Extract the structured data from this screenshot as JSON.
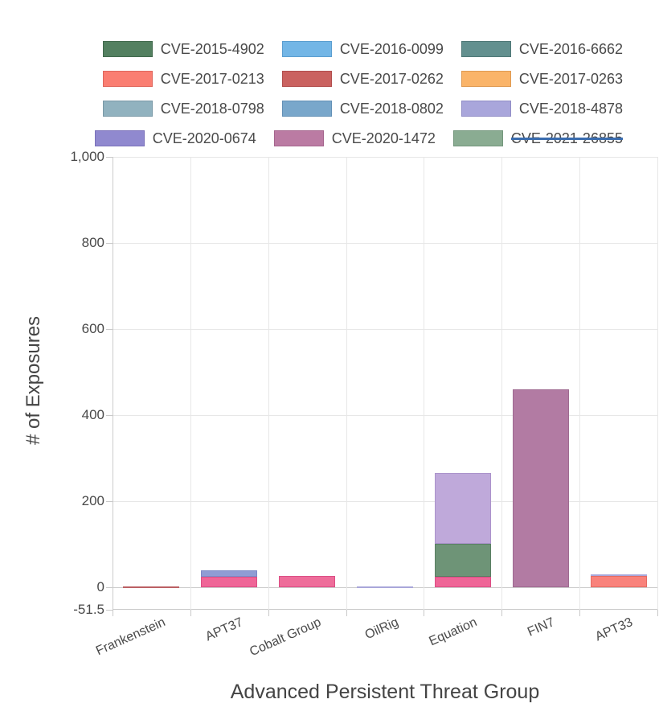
{
  "legend": {
    "strike_color": "#3a6cae",
    "rows": [
      {
        "items": [
          {
            "label": "CVE-2015-4902",
            "color": "#538060",
            "border": "#426a4e",
            "disabled": false
          },
          {
            "label": "CVE-2016-0099",
            "color": "#73b6e6",
            "border": "#5b9ed0",
            "disabled": false
          },
          {
            "label": "CVE-2016-6662",
            "color": "#63908f",
            "border": "#4f7877",
            "disabled": false
          }
        ]
      },
      {
        "items": [
          {
            "label": "CVE-2017-0213",
            "color": "#fa7e72",
            "border": "#df675d",
            "disabled": false
          },
          {
            "label": "CVE-2017-0262",
            "color": "#ca6260",
            "border": "#b14e4d",
            "disabled": false
          },
          {
            "label": "CVE-2017-0263",
            "color": "#fab469",
            "border": "#df9a52",
            "disabled": false
          }
        ]
      },
      {
        "items": [
          {
            "label": "CVE-2018-0798",
            "color": "#91b2bf",
            "border": "#7a99a7",
            "disabled": false
          },
          {
            "label": "CVE-2018-0802",
            "color": "#79a7cb",
            "border": "#6390b6",
            "disabled": false
          },
          {
            "label": "CVE-2018-4878",
            "color": "#a9a6db",
            "border": "#918dc6",
            "disabled": false
          }
        ]
      },
      {
        "items": [
          {
            "label": "CVE-2020-0674",
            "color": "#9089cf",
            "border": "#7a71ba",
            "disabled": false
          },
          {
            "label": "CVE-2020-1472",
            "color": "#bb7ba3",
            "border": "#a5658d",
            "disabled": false
          },
          {
            "label": "CVE-2021-26855",
            "color": "#8aac92",
            "border": "#73967c",
            "disabled": true
          }
        ]
      }
    ]
  },
  "chart_data": {
    "type": "bar",
    "mode": "stacked",
    "title": "",
    "xlabel": "Advanced Persistent Threat Group",
    "ylabel": "# of Exposures",
    "ylim": [
      -51.5,
      1000
    ],
    "grid": true,
    "legend_position": "top",
    "yticks": [
      {
        "label": "1,000",
        "value": 1000
      },
      {
        "label": "800",
        "value": 800
      },
      {
        "label": "600",
        "value": 600
      },
      {
        "label": "400",
        "value": 400
      },
      {
        "label": "200",
        "value": 200
      },
      {
        "label": "0",
        "value": 0
      },
      {
        "label": "-51.5",
        "value": -51.5
      }
    ],
    "categories": [
      "Frankenstein",
      "APT37",
      "Cobalt Group",
      "OilRig",
      "Equation",
      "FIN7",
      "APT33"
    ],
    "bars": [
      {
        "category": "Frankenstein",
        "total": 2,
        "segments": [
          {
            "series": "CVE-2017-0262",
            "from": 0,
            "to": 2,
            "color": "#bb6064",
            "border": ""
          }
        ]
      },
      {
        "category": "APT37",
        "total": 40,
        "segments": [
          {
            "series": "CVE-2017-0213",
            "from": 0,
            "to": 24,
            "color": "#ef6597",
            "border": "#dc4f85"
          },
          {
            "series": "CVE-2018-0802",
            "from": 24,
            "to": 40,
            "color": "#8f9cd4",
            "border": "#7d8ac6"
          }
        ]
      },
      {
        "category": "Cobalt Group",
        "total": 26,
        "segments": [
          {
            "series": "CVE-2017-0213",
            "from": 0,
            "to": 26,
            "color": "#ee6d9a",
            "border": "#dc4f85"
          }
        ]
      },
      {
        "category": "OilRig",
        "total": 2,
        "segments": [
          {
            "series": "CVE-2018-4878",
            "from": 0,
            "to": 2,
            "color": "#a9a7da",
            "border": ""
          }
        ]
      },
      {
        "category": "Equation",
        "total": 265,
        "segments": [
          {
            "series": "CVE-2017-0213",
            "from": 0,
            "to": 24,
            "color": "#ef6597",
            "border": "#dc4f85"
          },
          {
            "series": "CVE-2015-4902",
            "from": 24,
            "to": 101,
            "color": "#6e9477",
            "border": "#597f63"
          },
          {
            "series": "CVE-2018-4878",
            "from": 101,
            "to": 265,
            "color": "#bfa9da",
            "border": "#ab93cb"
          }
        ]
      },
      {
        "category": "FIN7",
        "total": 460,
        "segments": [
          {
            "series": "CVE-2020-1472",
            "from": 0,
            "to": 460,
            "color": "#b27ba3",
            "border": "#9f6a91"
          }
        ]
      },
      {
        "category": "APT33",
        "total": 30,
        "segments": [
          {
            "series": "CVE-2017-0213",
            "from": 0,
            "to": 26,
            "color": "#f9827b",
            "border": "#e56b63"
          },
          {
            "series": "CVE-2018-4878",
            "from": 26,
            "to": 30,
            "color": "#a9a7da",
            "border": ""
          }
        ]
      }
    ]
  }
}
